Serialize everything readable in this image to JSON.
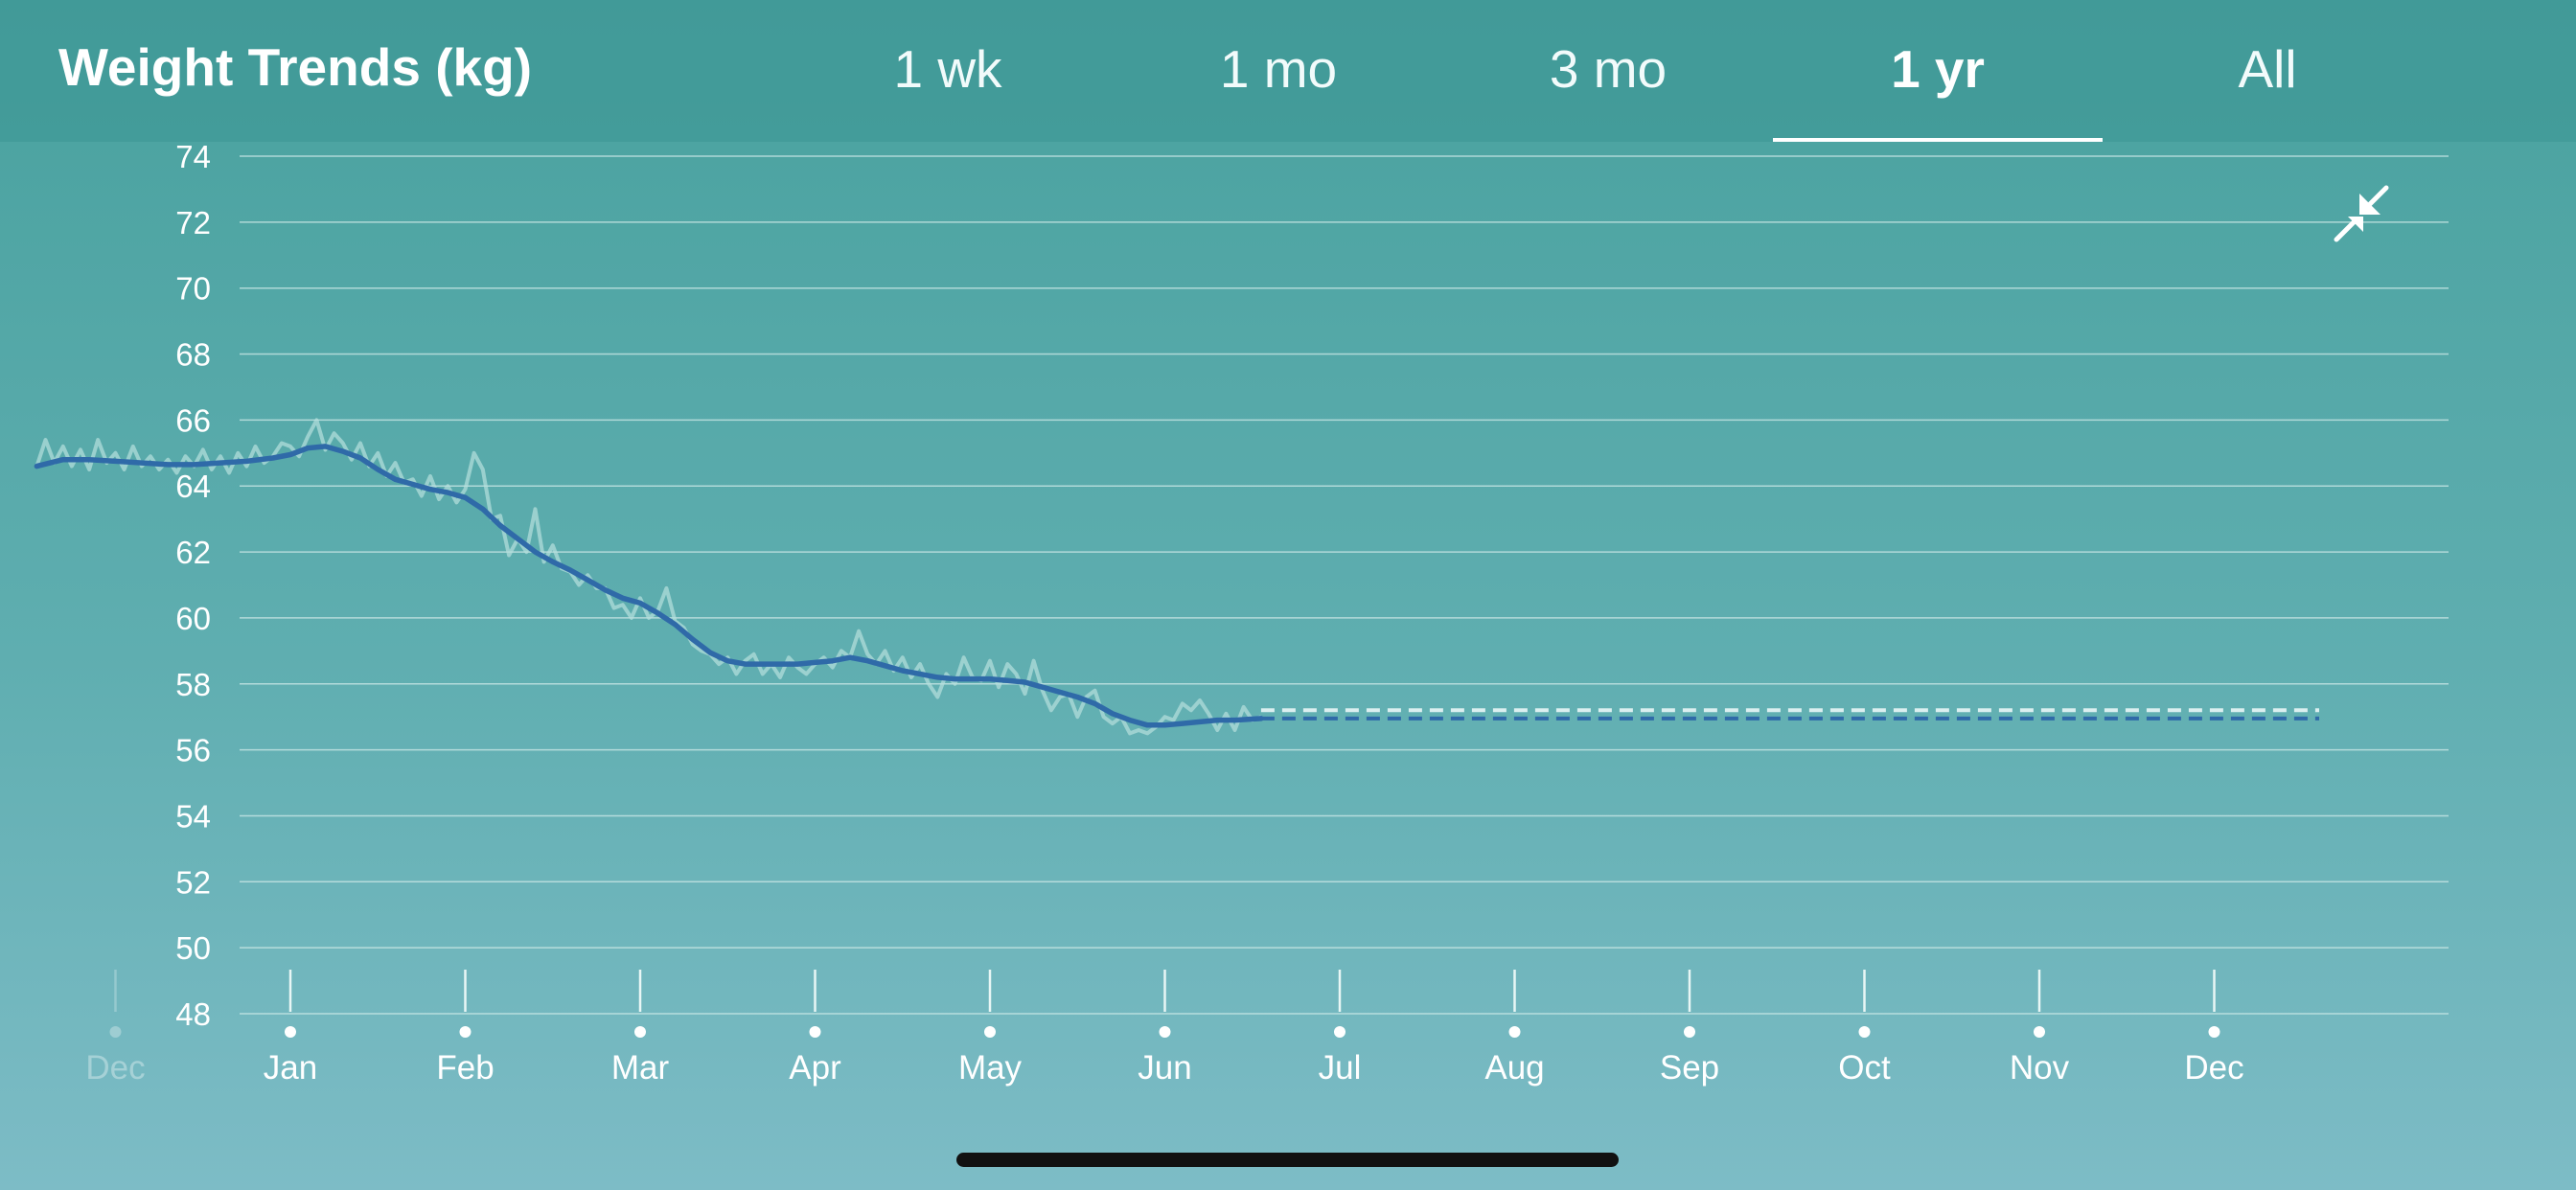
{
  "header": {
    "title": "Weight Trends (kg)",
    "tabs": [
      {
        "label": "1 wk",
        "active": false
      },
      {
        "label": "1 mo",
        "active": false
      },
      {
        "label": "3 mo",
        "active": false
      },
      {
        "label": "1 yr",
        "active": true
      },
      {
        "label": "All",
        "active": false
      }
    ]
  },
  "controls": {
    "collapse_icon": "collapse-arrows-icon"
  },
  "colors": {
    "trend_line": "#2f6aa8",
    "raw_line": "#b7e0dd",
    "grid": "#cfe9e8",
    "label": "#ffffff"
  },
  "chart_data": {
    "type": "line",
    "title": "Weight Trends (kg)",
    "ylim": [
      48,
      74
    ],
    "y_ticks": [
      74,
      72,
      70,
      68,
      66,
      64,
      62,
      60,
      58,
      56,
      54,
      52,
      50,
      48
    ],
    "x_tick_labels": [
      "Dec",
      "Jan",
      "Feb",
      "Mar",
      "Apr",
      "May",
      "Jun",
      "Jul",
      "Aug",
      "Sep",
      "Oct",
      "Nov",
      "Dec"
    ],
    "x_tick_faded": [
      true,
      false,
      false,
      false,
      false,
      false,
      false,
      false,
      false,
      false,
      false,
      false,
      false
    ],
    "x_unit": "month index (0 = Jan 1 of shown year, negative = previous year)",
    "grid": true,
    "series": [
      {
        "style": "daily",
        "points": [
          [
            -1.45,
            64.6
          ],
          [
            -1.4,
            65.4
          ],
          [
            -1.35,
            64.7
          ],
          [
            -1.3,
            65.2
          ],
          [
            -1.25,
            64.6
          ],
          [
            -1.2,
            65.1
          ],
          [
            -1.15,
            64.5
          ],
          [
            -1.1,
            65.4
          ],
          [
            -1.05,
            64.7
          ],
          [
            -1.0,
            65.0
          ],
          [
            -0.95,
            64.5
          ],
          [
            -0.9,
            65.2
          ],
          [
            -0.85,
            64.6
          ],
          [
            -0.8,
            64.9
          ],
          [
            -0.75,
            64.5
          ],
          [
            -0.7,
            64.8
          ],
          [
            -0.65,
            64.4
          ],
          [
            -0.6,
            64.9
          ],
          [
            -0.55,
            64.6
          ],
          [
            -0.5,
            65.1
          ],
          [
            -0.45,
            64.5
          ],
          [
            -0.4,
            64.9
          ],
          [
            -0.35,
            64.4
          ],
          [
            -0.3,
            65.0
          ],
          [
            -0.25,
            64.6
          ],
          [
            -0.2,
            65.2
          ],
          [
            -0.15,
            64.7
          ],
          [
            -0.1,
            64.9
          ],
          [
            -0.05,
            65.3
          ],
          [
            0.0,
            65.2
          ],
          [
            0.05,
            64.9
          ],
          [
            0.1,
            65.5
          ],
          [
            0.15,
            66.0
          ],
          [
            0.2,
            65.1
          ],
          [
            0.25,
            65.6
          ],
          [
            0.3,
            65.3
          ],
          [
            0.35,
            64.8
          ],
          [
            0.4,
            65.3
          ],
          [
            0.45,
            64.6
          ],
          [
            0.5,
            65.0
          ],
          [
            0.55,
            64.3
          ],
          [
            0.6,
            64.7
          ],
          [
            0.65,
            64.1
          ],
          [
            0.7,
            64.2
          ],
          [
            0.75,
            63.7
          ],
          [
            0.8,
            64.3
          ],
          [
            0.85,
            63.6
          ],
          [
            0.9,
            64.0
          ],
          [
            0.95,
            63.5
          ],
          [
            1.0,
            63.9
          ],
          [
            1.05,
            65.0
          ],
          [
            1.1,
            64.5
          ],
          [
            1.15,
            63.0
          ],
          [
            1.2,
            63.1
          ],
          [
            1.25,
            61.9
          ],
          [
            1.3,
            62.4
          ],
          [
            1.35,
            62.0
          ],
          [
            1.4,
            63.3
          ],
          [
            1.45,
            61.7
          ],
          [
            1.5,
            62.2
          ],
          [
            1.55,
            61.5
          ],
          [
            1.6,
            61.4
          ],
          [
            1.65,
            61.0
          ],
          [
            1.7,
            61.3
          ],
          [
            1.75,
            60.9
          ],
          [
            1.8,
            60.9
          ],
          [
            1.85,
            60.3
          ],
          [
            1.9,
            60.4
          ],
          [
            1.95,
            60.0
          ],
          [
            2.0,
            60.6
          ],
          [
            2.05,
            60.0
          ],
          [
            2.1,
            60.2
          ],
          [
            2.15,
            60.9
          ],
          [
            2.2,
            59.9
          ],
          [
            2.25,
            59.7
          ],
          [
            2.3,
            59.2
          ],
          [
            2.35,
            59.0
          ],
          [
            2.4,
            58.9
          ],
          [
            2.45,
            58.6
          ],
          [
            2.5,
            58.8
          ],
          [
            2.55,
            58.3
          ],
          [
            2.6,
            58.7
          ],
          [
            2.65,
            58.9
          ],
          [
            2.7,
            58.3
          ],
          [
            2.75,
            58.6
          ],
          [
            2.8,
            58.2
          ],
          [
            2.85,
            58.8
          ],
          [
            2.9,
            58.5
          ],
          [
            2.95,
            58.3
          ],
          [
            3.0,
            58.6
          ],
          [
            3.05,
            58.8
          ],
          [
            3.1,
            58.5
          ],
          [
            3.15,
            59.0
          ],
          [
            3.2,
            58.8
          ],
          [
            3.25,
            59.6
          ],
          [
            3.3,
            58.9
          ],
          [
            3.35,
            58.6
          ],
          [
            3.4,
            59.0
          ],
          [
            3.45,
            58.4
          ],
          [
            3.5,
            58.8
          ],
          [
            3.55,
            58.2
          ],
          [
            3.6,
            58.6
          ],
          [
            3.65,
            58.0
          ],
          [
            3.7,
            57.6
          ],
          [
            3.75,
            58.3
          ],
          [
            3.8,
            58.0
          ],
          [
            3.85,
            58.8
          ],
          [
            3.9,
            58.2
          ],
          [
            3.95,
            58.1
          ],
          [
            4.0,
            58.7
          ],
          [
            4.05,
            57.9
          ],
          [
            4.1,
            58.6
          ],
          [
            4.15,
            58.3
          ],
          [
            4.2,
            57.7
          ],
          [
            4.25,
            58.7
          ],
          [
            4.3,
            57.8
          ],
          [
            4.35,
            57.2
          ],
          [
            4.4,
            57.6
          ],
          [
            4.45,
            57.7
          ],
          [
            4.5,
            57.0
          ],
          [
            4.55,
            57.6
          ],
          [
            4.6,
            57.8
          ],
          [
            4.65,
            57.0
          ],
          [
            4.7,
            56.8
          ],
          [
            4.75,
            57.0
          ],
          [
            4.8,
            56.5
          ],
          [
            4.85,
            56.6
          ],
          [
            4.9,
            56.5
          ],
          [
            4.95,
            56.7
          ],
          [
            5.0,
            57.0
          ],
          [
            5.05,
            56.9
          ],
          [
            5.1,
            57.4
          ],
          [
            5.15,
            57.2
          ],
          [
            5.2,
            57.5
          ],
          [
            5.25,
            57.1
          ],
          [
            5.3,
            56.6
          ],
          [
            5.35,
            57.1
          ],
          [
            5.4,
            56.6
          ],
          [
            5.45,
            57.3
          ],
          [
            5.5,
            56.9
          ],
          [
            5.55,
            57.0
          ]
        ]
      },
      {
        "style": "trend",
        "points": [
          [
            -1.45,
            64.6
          ],
          [
            -1.3,
            64.8
          ],
          [
            -1.15,
            64.8
          ],
          [
            -1.0,
            64.75
          ],
          [
            -0.85,
            64.7
          ],
          [
            -0.7,
            64.65
          ],
          [
            -0.55,
            64.65
          ],
          [
            -0.4,
            64.7
          ],
          [
            -0.25,
            64.75
          ],
          [
            -0.1,
            64.85
          ],
          [
            0.0,
            64.95
          ],
          [
            0.1,
            65.15
          ],
          [
            0.2,
            65.2
          ],
          [
            0.3,
            65.05
          ],
          [
            0.4,
            64.85
          ],
          [
            0.5,
            64.5
          ],
          [
            0.6,
            64.2
          ],
          [
            0.7,
            64.05
          ],
          [
            0.8,
            63.9
          ],
          [
            0.9,
            63.8
          ],
          [
            1.0,
            63.65
          ],
          [
            1.1,
            63.3
          ],
          [
            1.2,
            62.8
          ],
          [
            1.3,
            62.4
          ],
          [
            1.4,
            62.0
          ],
          [
            1.5,
            61.7
          ],
          [
            1.6,
            61.45
          ],
          [
            1.7,
            61.15
          ],
          [
            1.8,
            60.85
          ],
          [
            1.9,
            60.6
          ],
          [
            2.0,
            60.45
          ],
          [
            2.1,
            60.15
          ],
          [
            2.2,
            59.8
          ],
          [
            2.3,
            59.35
          ],
          [
            2.4,
            58.95
          ],
          [
            2.5,
            58.7
          ],
          [
            2.6,
            58.6
          ],
          [
            2.7,
            58.6
          ],
          [
            2.8,
            58.6
          ],
          [
            2.9,
            58.6
          ],
          [
            3.0,
            58.65
          ],
          [
            3.1,
            58.7
          ],
          [
            3.2,
            58.8
          ],
          [
            3.3,
            58.7
          ],
          [
            3.4,
            58.55
          ],
          [
            3.5,
            58.4
          ],
          [
            3.6,
            58.3
          ],
          [
            3.7,
            58.2
          ],
          [
            3.8,
            58.15
          ],
          [
            3.9,
            58.15
          ],
          [
            4.0,
            58.15
          ],
          [
            4.1,
            58.1
          ],
          [
            4.2,
            58.05
          ],
          [
            4.3,
            57.9
          ],
          [
            4.4,
            57.75
          ],
          [
            4.5,
            57.6
          ],
          [
            4.6,
            57.4
          ],
          [
            4.7,
            57.1
          ],
          [
            4.8,
            56.9
          ],
          [
            4.9,
            56.75
          ],
          [
            5.0,
            56.75
          ],
          [
            5.1,
            56.8
          ],
          [
            5.2,
            56.85
          ],
          [
            5.3,
            56.9
          ],
          [
            5.4,
            56.9
          ],
          [
            5.55,
            56.95
          ]
        ]
      },
      {
        "style": "projection-light",
        "points": [
          [
            5.55,
            57.2
          ],
          [
            11.6,
            57.2
          ]
        ]
      },
      {
        "style": "projection-dark",
        "points": [
          [
            5.55,
            56.95
          ],
          [
            11.6,
            56.95
          ]
        ]
      }
    ]
  }
}
